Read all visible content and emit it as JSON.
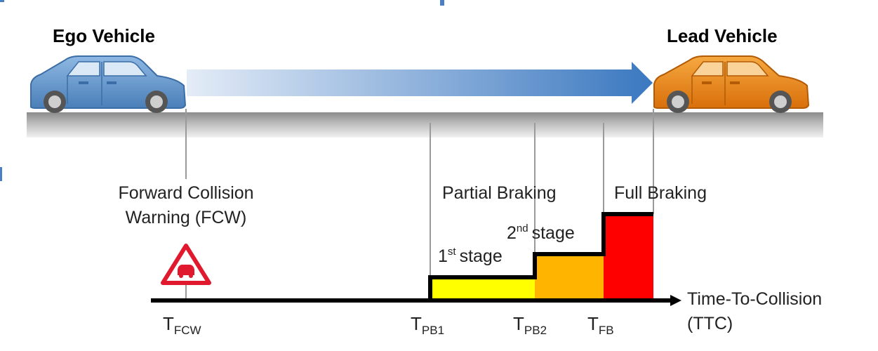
{
  "header": {
    "ego_label": "Ego Vehicle",
    "lead_label": "Lead Vehicle"
  },
  "warning": {
    "line1": "Forward Collision",
    "line2": "Warning (FCW)"
  },
  "braking": {
    "partial_label": "Partial Braking",
    "full_label": "Full Braking",
    "stage1": {
      "num": "1",
      "sup": "st",
      "word": "stage"
    },
    "stage2": {
      "num": "2",
      "sup": "nd",
      "word": "stage"
    }
  },
  "axis": {
    "label_line1": "Time-To-Collision",
    "label_line2": "(TTC)",
    "ticks": [
      {
        "main": "T",
        "sub": "FCW"
      },
      {
        "main": "T",
        "sub": "PB1"
      },
      {
        "main": "T",
        "sub": "PB2"
      },
      {
        "main": "T",
        "sub": "FB"
      }
    ]
  },
  "colors": {
    "ego_car": "#5b8ec9",
    "lead_car": "#e8820f",
    "stage1_fill": "#ffff00",
    "stage2_fill": "#ffb400",
    "full_fill": "#ff0000",
    "warning_red": "#e0192e",
    "arrow_blue": "#3f7fc4"
  },
  "icons": {
    "warning": "collision-warning-triangle-icon",
    "ego": "ego-car-icon",
    "lead": "lead-car-icon"
  }
}
